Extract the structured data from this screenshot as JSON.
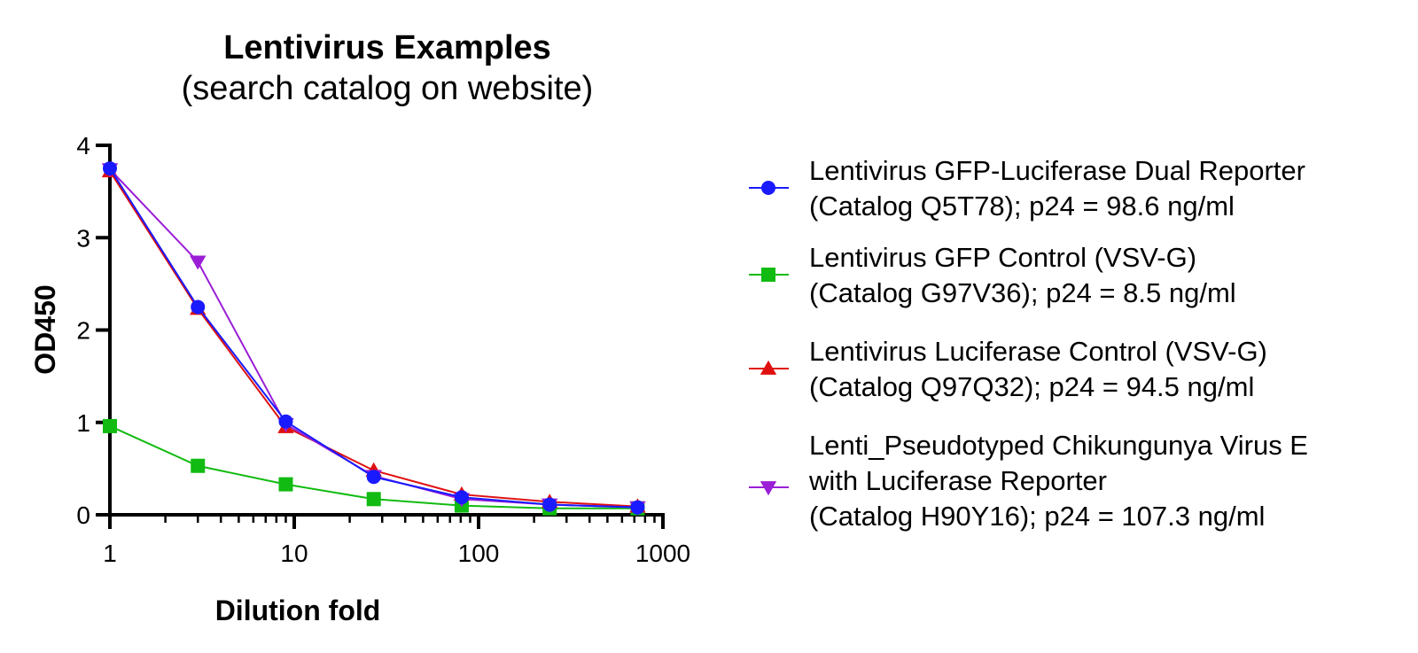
{
  "chart_data": {
    "type": "line",
    "title": "Lentivirus Examples",
    "subtitle": "(search catalog on website)",
    "xlabel": "Dilution fold",
    "ylabel": "OD450",
    "x_scale": "log",
    "xlim": [
      1,
      1000
    ],
    "ylim": [
      0,
      4
    ],
    "x_ticks": [
      "1",
      "10",
      "100",
      "1000"
    ],
    "y_ticks": [
      "0",
      "1",
      "2",
      "3",
      "4"
    ],
    "grid": false,
    "legend_position": "right",
    "x": [
      1,
      3,
      9,
      27,
      81,
      243,
      729
    ],
    "series": [
      {
        "legend": [
          "Lentivirus GFP-Luciferase Dual Reporter",
          "(Catalog Q5T78); p24 = 98.6 ng/ml"
        ],
        "color": "#1a1aff",
        "marker": "circle",
        "values": [
          3.75,
          2.25,
          1.01,
          0.41,
          0.19,
          0.11,
          0.08
        ]
      },
      {
        "legend": [
          "Lentivirus GFP Control (VSV-G)",
          "(Catalog G97V36); p24 = 8.5 ng/ml"
        ],
        "color": "#11bb11",
        "marker": "square",
        "values": [
          0.96,
          0.53,
          0.33,
          0.17,
          0.1,
          0.07,
          0.07
        ]
      },
      {
        "legend": [
          "Lentivirus Luciferase Control (VSV-G)",
          "(Catalog Q97Q32); p24 = 94.5 ng/ml"
        ],
        "color": "#e01010",
        "marker": "triangle-up",
        "values": [
          3.72,
          2.23,
          0.95,
          0.48,
          0.22,
          0.14,
          0.09
        ]
      },
      {
        "legend": [
          "Lenti_Pseudotyped Chikungunya Virus E",
          "with Luciferase Reporter",
          "(Catalog H90Y16); p24 = 107.3 ng/ml"
        ],
        "color": "#9a1ed6",
        "marker": "triangle-down",
        "values": [
          3.74,
          2.74,
          0.98,
          0.42,
          0.17,
          0.11,
          0.08
        ]
      }
    ]
  }
}
